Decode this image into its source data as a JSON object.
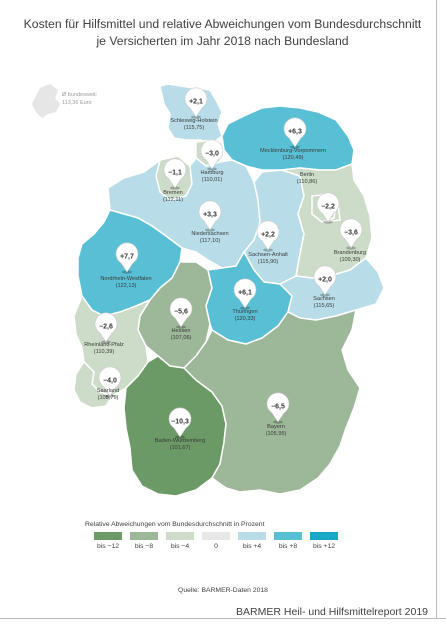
{
  "title_line1": "Kosten für Hilfsmittel und relative Abweichungen vom Bundesdurchschnitt",
  "title_line2": "je Versicherten im Jahr 2018 nach Bundesland",
  "inset": {
    "line1": "Ø bundesweit:",
    "line2": "113,36 Euro"
  },
  "colors": {
    "minus12": "#6b9a66",
    "minus8": "#9db898",
    "minus4": "#cddcc8",
    "zero": "#e8e8e8",
    "plus4": "#b8dde8",
    "plus8": "#58bfd4",
    "plus12": "#19a9c6"
  },
  "states": [
    {
      "id": "sh",
      "name": "Schleswig-Holstein",
      "value": "(115,75)",
      "deviation": "+2,1",
      "category": "plus4"
    },
    {
      "id": "hh",
      "name": "Hamburg",
      "value": "(110,01)",
      "deviation": "−3,0",
      "category": "minus4"
    },
    {
      "id": "mv",
      "name": "Mecklenburg-Vorpommern",
      "value": "(120,49)",
      "deviation": "+6,3",
      "category": "plus8"
    },
    {
      "id": "hb",
      "name": "Bremen",
      "value": "(112,11)",
      "deviation": "−1,1",
      "category": "minus4"
    },
    {
      "id": "ni",
      "name": "Niedersachsen",
      "value": "(117,10)",
      "deviation": "+3,3",
      "category": "plus4"
    },
    {
      "id": "be",
      "name": "Berlin",
      "value": "(110,86)",
      "deviation": "−2,2",
      "category": "minus4"
    },
    {
      "id": "bb",
      "name": "Brandenburg",
      "value": "(109,30)",
      "deviation": "−3,6",
      "category": "minus4"
    },
    {
      "id": "st",
      "name": "Sachsen-Anhalt",
      "value": "(115,90)",
      "deviation": "+2,2",
      "category": "plus4"
    },
    {
      "id": "nw",
      "name": "Nordrhein-Westfalen",
      "value": "(122,13)",
      "deviation": "+7,7",
      "category": "plus8"
    },
    {
      "id": "sn",
      "name": "Sachsen",
      "value": "(115,65)",
      "deviation": "+2,0",
      "category": "plus4"
    },
    {
      "id": "th",
      "name": "Thüringen",
      "value": "(120,33)",
      "deviation": "+6,1",
      "category": "plus8"
    },
    {
      "id": "he",
      "name": "Hessen",
      "value": "(107,06)",
      "deviation": "−5,6",
      "category": "minus8"
    },
    {
      "id": "rp",
      "name": "Rheinland-Pfalz",
      "value": "(110,39)",
      "deviation": "−2,6",
      "category": "minus4"
    },
    {
      "id": "sl",
      "name": "Saarland",
      "value": "(108,79)",
      "deviation": "−4,0",
      "category": "minus4"
    },
    {
      "id": "by",
      "name": "Bayern",
      "value": "(105,95)",
      "deviation": "−6,5",
      "category": "minus8"
    },
    {
      "id": "bw",
      "name": "Baden-Württemberg",
      "value": "(101,67)",
      "deviation": "−10,3",
      "category": "minus12"
    }
  ],
  "legend": {
    "title": "Relative Abweichungen vom Bundesdurchschnitt in Prozent",
    "items": [
      {
        "label": "bis −12",
        "category": "minus12"
      },
      {
        "label": "bis −8",
        "category": "minus8"
      },
      {
        "label": "bis −4",
        "category": "minus4"
      },
      {
        "label": "0",
        "category": "zero"
      },
      {
        "label": "bis +4",
        "category": "plus4"
      },
      {
        "label": "bis +8",
        "category": "plus8"
      },
      {
        "label": "bis +12",
        "category": "plus12"
      }
    ]
  },
  "source": "Quelle: BARMER-Daten 2018",
  "footer": "BARMER Heil- und Hilfsmittelreport 2019"
}
